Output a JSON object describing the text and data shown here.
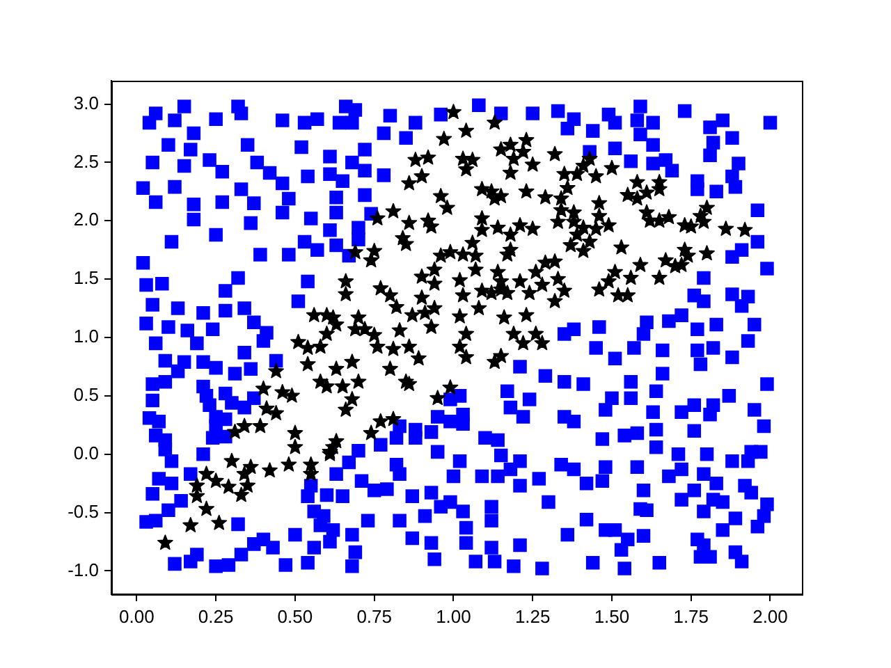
{
  "chart_data": {
    "type": "scatter",
    "xlim": [
      -0.08,
      2.1
    ],
    "ylim": [
      -1.2,
      3.2
    ],
    "xticks": [
      {
        "value": 0,
        "label": "0.00"
      },
      {
        "value": 0.25,
        "label": "0.25"
      },
      {
        "value": 0.5,
        "label": "0.50"
      },
      {
        "value": 0.75,
        "label": "0.75"
      },
      {
        "value": 1,
        "label": "1.00"
      },
      {
        "value": 1.25,
        "label": "1.25"
      },
      {
        "value": 1.5,
        "label": "1.50"
      },
      {
        "value": 1.75,
        "label": "1.75"
      },
      {
        "value": 2,
        "label": "2.00"
      }
    ],
    "yticks": [
      {
        "value": -1,
        "label": "-1.0"
      },
      {
        "value": -0.5,
        "label": "-0.5"
      },
      {
        "value": 0,
        "label": "0.0"
      },
      {
        "value": 0.5,
        "label": "0.5"
      },
      {
        "value": 1,
        "label": "1.0"
      },
      {
        "value": 1.5,
        "label": "1.5"
      },
      {
        "value": 2,
        "label": "2.0"
      },
      {
        "value": 2.5,
        "label": "2.5"
      },
      {
        "value": 3,
        "label": "3.0"
      }
    ],
    "series": [
      {
        "color": "#0000ff",
        "marker": "square",
        "x": [
          0.06,
          0.04,
          0.15,
          0.12,
          0.25,
          0.32,
          0.33,
          0.46,
          0.53,
          0.57,
          0.18,
          0.17,
          0.1,
          0.05,
          0.15,
          0.23,
          0.27,
          0.35,
          0.38,
          0.42,
          0.46,
          0.48,
          0.52,
          0.54,
          0.02,
          0.06,
          0.12,
          0.18,
          0.18,
          0.27,
          0.33,
          0.37,
          0.36,
          0.46,
          0.55,
          0.11,
          0.25,
          0.39,
          0.48,
          0.53,
          0.57,
          0.02,
          0.03,
          0.08,
          0.05,
          0.13,
          0.21,
          0.28,
          0.34,
          0.28,
          0.32,
          0.37,
          0.54,
          0.51,
          0.03,
          0.1,
          0.16,
          0.24,
          0.41,
          0.66,
          0.69,
          0.64,
          0.68,
          0.8,
          0.96,
          0.88,
          0.85,
          0.78,
          1.08,
          1.15,
          1.25,
          1.33,
          0.61,
          0.68,
          0.72,
          0.72,
          0.61,
          0.65,
          0.78,
          0.63,
          0.72,
          0.63,
          0.74,
          0.61,
          0.7,
          0.7,
          0.63,
          0.67,
          1.38,
          1.36,
          1.44,
          1.49,
          1.51,
          1.59,
          1.58,
          1.63,
          1.73,
          1.59,
          1.63,
          1.81,
          1.85,
          2.0,
          1.82,
          1.88,
          1.81,
          1.43,
          1.51,
          1.56,
          1.63,
          1.67,
          1.69,
          1.77,
          1.77,
          1.9,
          1.88,
          1.83,
          1.89,
          1.96,
          1.96,
          1.88,
          1.91,
          1.99,
          1.79,
          1.76,
          1.79,
          1.88,
          1.93,
          1.91,
          1.38,
          1.46,
          1.61,
          1.68,
          1.72,
          1.77,
          1.83,
          1.95,
          1.35,
          0.06,
          0.19,
          0.4,
          0.34,
          0.09,
          0.15,
          0.21,
          0.25,
          0.13,
          0.31,
          0.36,
          0.44,
          0.05,
          0.09,
          0.21,
          0.22,
          0.28,
          0.05,
          0.3,
          0.34,
          0.37,
          0.04,
          0.07,
          0.23,
          0.25,
          0.28,
          0.25,
          0.24,
          0.28,
          0.06,
          0.09,
          0.09,
          0.11,
          0.21,
          0.17,
          0.07,
          0.11,
          0.05,
          0.14,
          0.1,
          0.03,
          0.06,
          0.32,
          0.37,
          0.4,
          0.43,
          0.5,
          0.12,
          0.17,
          0.19,
          0.25,
          0.29,
          0.33,
          0.47,
          0.54,
          0.55,
          0.54,
          0.56,
          0.58,
          0.56,
          0.61,
          1.21,
          1.29,
          1.35,
          1.17,
          1.18,
          1.24,
          1.22,
          0.99,
          1.02,
          1.03,
          1.03,
          0.99,
          0.95,
          0.93,
          0.83,
          0.88,
          0.88,
          0.82,
          0.77,
          0.7,
          0.67,
          0.63,
          0.82,
          0.83,
          0.95,
          1.02,
          1.0,
          1.1,
          1.14,
          1.15,
          1.09,
          1.14,
          1.18,
          1.21,
          1.21,
          1.27,
          1.34,
          1.3,
          0.6,
          0.65,
          0.79,
          0.75,
          0.71,
          0.87,
          0.93,
          0.99,
          1.03,
          0.96,
          0.91,
          0.83,
          0.87,
          0.93,
          0.94,
          1.04,
          1.04,
          1.07,
          1.12,
          1.13,
          1.21,
          1.19,
          1.28,
          1.12,
          1.12,
          0.73,
          0.68,
          0.69,
          0.68,
          0.59,
          0.62,
          1.36,
          1.35,
          1.45,
          1.51,
          1.57,
          1.6,
          1.66,
          1.77,
          1.82,
          1.88,
          1.93,
          1.78,
          1.66,
          1.41,
          1.56,
          1.64,
          1.5,
          1.56,
          1.63,
          1.48,
          1.38,
          1.72,
          1.76,
          1.82,
          1.87,
          1.81,
          1.76,
          1.99,
          1.95,
          1.98,
          1.47,
          1.54,
          1.58,
          1.64,
          1.64,
          1.71,
          1.8,
          1.88,
          1.94,
          1.97,
          1.93,
          1.38,
          1.42,
          1.47,
          1.48,
          1.58,
          1.68,
          1.72,
          1.79,
          1.83,
          1.76,
          1.6,
          1.72,
          1.82,
          1.85,
          1.79,
          1.92,
          1.94,
          1.99,
          1.98,
          1.96,
          1.89,
          1.85,
          1.77,
          1.79,
          1.81,
          1.89,
          1.91,
          1.59,
          1.61,
          1.42,
          1.48,
          1.51,
          1.55,
          1.6,
          1.53,
          1.44,
          1.54,
          1.65,
          1.78
        ],
        "values": [
          2.92,
          2.84,
          2.98,
          2.86,
          2.87,
          2.98,
          2.92,
          2.86,
          2.84,
          2.87,
          2.75,
          2.61,
          2.65,
          2.5,
          2.47,
          2.52,
          2.42,
          2.65,
          2.5,
          2.41,
          2.32,
          2.19,
          2.63,
          2.38,
          2.28,
          2.16,
          2.29,
          2.14,
          2.01,
          2.16,
          2.27,
          2.15,
          1.98,
          2.07,
          2.02,
          1.82,
          1.88,
          1.71,
          1.71,
          1.82,
          1.75,
          1.64,
          1.45,
          1.46,
          1.28,
          1.25,
          1.21,
          1.23,
          1.25,
          1.4,
          1.51,
          1.13,
          1.48,
          1.31,
          1.12,
          1.09,
          1.06,
          1.07,
          1.04,
          2.98,
          2.95,
          2.84,
          2.84,
          2.9,
          2.91,
          2.84,
          2.71,
          2.75,
          2.99,
          2.92,
          2.92,
          2.94,
          2.55,
          2.5,
          2.61,
          2.43,
          2.4,
          2.34,
          2.39,
          2.2,
          2.22,
          2.07,
          2.06,
          1.92,
          1.94,
          1.84,
          1.79,
          1.7,
          2.87,
          2.79,
          2.77,
          2.91,
          2.84,
          2.98,
          2.86,
          2.84,
          2.94,
          2.74,
          2.65,
          2.8,
          2.86,
          2.84,
          2.67,
          2.71,
          2.56,
          2.59,
          2.62,
          2.51,
          2.49,
          2.52,
          2.43,
          2.34,
          2.27,
          2.49,
          2.38,
          2.25,
          2.29,
          2.09,
          1.82,
          1.69,
          1.75,
          1.59,
          1.51,
          1.36,
          1.31,
          1.37,
          1.35,
          1.27,
          1.07,
          1.09,
          1.13,
          1.14,
          1.19,
          1.07,
          1.11,
          1.11,
          1.03,
          0.95,
          0.95,
          0.97,
          0.87,
          0.8,
          0.79,
          0.79,
          0.74,
          0.71,
          0.69,
          0.73,
          0.8,
          0.6,
          0.62,
          0.58,
          0.5,
          0.52,
          0.46,
          0.44,
          0.4,
          0.48,
          0.31,
          0.28,
          0.42,
          0.32,
          0.3,
          0.24,
          0.14,
          0.15,
          0.16,
          0.12,
          0.04,
          -0.06,
          0.0,
          -0.17,
          -0.21,
          -0.25,
          -0.34,
          -0.4,
          -0.48,
          -0.58,
          -0.57,
          -0.6,
          -0.77,
          -0.73,
          -0.8,
          -0.69,
          -0.94,
          -0.92,
          -0.86,
          -0.96,
          -0.95,
          -0.86,
          -0.95,
          -0.93,
          -0.27,
          -0.36,
          -0.49,
          -0.61,
          -0.8,
          -0.75,
          0.75,
          0.67,
          0.62,
          0.54,
          0.4,
          0.47,
          0.32,
          0.47,
          0.5,
          0.34,
          0.26,
          0.28,
          0.32,
          0.19,
          0.24,
          0.21,
          0.14,
          0.14,
          0.08,
          0.03,
          -0.07,
          -0.17,
          -0.09,
          -0.17,
          0.02,
          -0.06,
          -0.19,
          0.14,
          0.12,
          -0.01,
          -0.19,
          -0.19,
          -0.13,
          -0.27,
          -0.06,
          -0.21,
          -0.09,
          -0.41,
          -0.35,
          -0.36,
          -0.3,
          -0.31,
          -0.23,
          -0.36,
          -0.33,
          -0.41,
          -0.49,
          -0.45,
          -0.53,
          -0.57,
          -0.72,
          -0.76,
          -0.9,
          -0.63,
          -0.76,
          -0.92,
          -0.8,
          -0.92,
          -0.78,
          -0.96,
          -0.98,
          -0.45,
          -0.57,
          -0.57,
          -0.69,
          -0.84,
          -0.96,
          -0.53,
          -0.65,
          -0.69,
          0.32,
          0.91,
          0.82,
          0.91,
          1.03,
          0.89,
          0.89,
          0.91,
          0.83,
          0.97,
          0.77,
          0.69,
          0.6,
          0.62,
          0.54,
          0.48,
          0.48,
          0.36,
          0.38,
          0.28,
          0.36,
          0.42,
          0.42,
          0.5,
          0.34,
          0.2,
          0.6,
          0.38,
          0.24,
          0.13,
          0.16,
          0.18,
          0.21,
          0.06,
          0.0,
          0.0,
          -0.06,
          0.02,
          0.02,
          -0.06,
          -0.13,
          -0.25,
          -0.23,
          -0.11,
          -0.11,
          -0.19,
          -0.13,
          -0.17,
          -0.25,
          -0.31,
          -0.31,
          -0.39,
          -0.39,
          -0.41,
          -0.49,
          -0.27,
          -0.33,
          -0.43,
          -0.53,
          -0.62,
          -0.55,
          -0.65,
          -0.73,
          -0.78,
          -0.88,
          -0.84,
          -0.92,
          -0.47,
          -0.48,
          -0.56,
          -0.65,
          -0.65,
          -0.73,
          -0.7,
          -0.82,
          -0.93,
          -0.98,
          -0.93,
          -0.88
        ]
      },
      {
        "color": "#000000",
        "marker": "star",
        "x": [
          0.56,
          1.0,
          1.13,
          0.97,
          1.04,
          1.23,
          1.18,
          1.15,
          1.19,
          1.22,
          1.25,
          1.32,
          1.03,
          1.06,
          1.04,
          0.92,
          0.88,
          0.9,
          0.86,
          1.18,
          1.35,
          1.09,
          1.12,
          1.13,
          1.15,
          1.23,
          1.29,
          1.34,
          0.96,
          0.98,
          1.34,
          0.81,
          0.76,
          0.86,
          0.92,
          0.93,
          1.09,
          1.09,
          1.14,
          1.21,
          1.25,
          1.18,
          1.33,
          1.06,
          0.84,
          0.85,
          0.75,
          0.74,
          0.69,
          0.96,
          0.99,
          1.03,
          1.07,
          1.18,
          1.17,
          1.37,
          0.94,
          0.9,
          0.94,
          1.02,
          1.07,
          1.14,
          1.15,
          1.15,
          1.12,
          1.21,
          1.26,
          1.29,
          1.32,
          1.33,
          1.35,
          1.32,
          1.28,
          1.24,
          1.17,
          1.09,
          1.03,
          1.08,
          1.16,
          1.23,
          0.9,
          0.77,
          0.8,
          0.82,
          0.87,
          0.91,
          0.94,
          1.02,
          0.66,
          0.66,
          0.6,
          0.62,
          0.63,
          0.7,
          0.69,
          0.72,
          0.75,
          0.6,
          0.83,
          0.93,
          1.04,
          1.19,
          1.26,
          1.43,
          1.41,
          1.39,
          1.45,
          1.5,
          1.36,
          1.46,
          1.38,
          1.38,
          1.58,
          1.65,
          1.65,
          1.61,
          1.55,
          1.58,
          1.46,
          1.49,
          1.41,
          1.45,
          1.39,
          1.43,
          1.41,
          1.61,
          1.62,
          1.65,
          1.68,
          1.73,
          1.75,
          1.78,
          1.8,
          1.79,
          1.86,
          1.92,
          1.8,
          1.73,
          1.74,
          1.67,
          1.7,
          1.72,
          1.53,
          1.59,
          1.51,
          1.56,
          1.65,
          1.49,
          1.46,
          1.52,
          1.55,
          0.51,
          0.54,
          0.58,
          0.54,
          0.44,
          0.58,
          0.4,
          0.46,
          0.49,
          0.41,
          0.44,
          0.34,
          0.39,
          0.31,
          0.5,
          0.5,
          0.61,
          0.3,
          0.36,
          0.34,
          0.48,
          0.55,
          0.42,
          0.55,
          0.22,
          0.25,
          0.29,
          0.19,
          0.35,
          0.33,
          0.19,
          0.22,
          0.26,
          0.17,
          0.09,
          0.76,
          0.81,
          0.86,
          0.89,
          1.02,
          1.04,
          1.22,
          1.28,
          1.13,
          1.15,
          0.63,
          0.68,
          0.8,
          0.85,
          0.86,
          0.7,
          0.65,
          0.6,
          0.68,
          0.66,
          0.99,
          0.95,
          0.77,
          0.81,
          0.74,
          0.63,
          0.62,
          0.61
        ],
        "values": [
          1.19,
          2.93,
          2.84,
          2.7,
          2.77,
          2.69,
          2.65,
          2.61,
          2.53,
          2.59,
          2.48,
          2.57,
          2.53,
          2.52,
          2.44,
          2.54,
          2.52,
          2.38,
          2.32,
          2.41,
          2.4,
          2.27,
          2.25,
          2.19,
          2.21,
          2.25,
          2.2,
          2.19,
          2.21,
          2.11,
          2.09,
          2.08,
          2.02,
          1.98,
          2.0,
          1.95,
          2.02,
          1.92,
          1.94,
          1.96,
          1.93,
          1.88,
          1.99,
          1.81,
          1.85,
          1.8,
          1.74,
          1.66,
          1.73,
          1.7,
          1.73,
          1.71,
          1.7,
          1.75,
          1.71,
          1.79,
          1.58,
          1.52,
          1.46,
          1.49,
          1.58,
          1.56,
          1.48,
          1.41,
          1.38,
          1.48,
          1.56,
          1.64,
          1.65,
          1.5,
          1.4,
          1.31,
          1.45,
          1.38,
          1.38,
          1.4,
          1.36,
          1.25,
          1.17,
          1.19,
          1.34,
          1.42,
          1.36,
          1.26,
          1.19,
          1.21,
          1.25,
          1.18,
          1.48,
          1.37,
          1.19,
          1.17,
          1.11,
          1.17,
          1.07,
          1.07,
          1.02,
          1.03,
          1.06,
          1.09,
          1.03,
          1.03,
          1.03,
          2.53,
          2.47,
          2.4,
          2.38,
          2.45,
          2.28,
          2.15,
          2.07,
          1.99,
          2.33,
          2.33,
          2.27,
          2.24,
          2.22,
          2.19,
          2.04,
          1.96,
          1.94,
          1.93,
          1.88,
          1.82,
          1.74,
          2.07,
          2.0,
          2.0,
          2.03,
          1.96,
          1.95,
          2.04,
          2.11,
          1.99,
          1.93,
          1.92,
          1.72,
          1.75,
          1.7,
          1.66,
          1.61,
          1.62,
          1.77,
          1.62,
          1.56,
          1.51,
          1.51,
          1.48,
          1.41,
          1.36,
          1.36,
          0.96,
          0.91,
          0.92,
          0.77,
          0.71,
          0.62,
          0.56,
          0.53,
          0.5,
          0.39,
          0.35,
          0.24,
          0.24,
          0.19,
          0.18,
          0.06,
          0.0,
          -0.06,
          -0.11,
          -0.17,
          -0.09,
          -0.09,
          -0.14,
          -0.17,
          -0.17,
          -0.23,
          -0.28,
          -0.27,
          -0.27,
          -0.35,
          -0.36,
          -0.47,
          -0.59,
          -0.61,
          -0.76,
          0.92,
          0.9,
          0.92,
          0.82,
          0.92,
          0.83,
          0.95,
          0.95,
          0.79,
          0.84,
          0.73,
          0.79,
          0.73,
          0.62,
          0.6,
          0.62,
          0.58,
          0.58,
          0.47,
          0.38,
          0.57,
          0.48,
          0.28,
          0.3,
          0.18,
          0.11,
          0.06,
          0.02
        ]
      }
    ]
  }
}
